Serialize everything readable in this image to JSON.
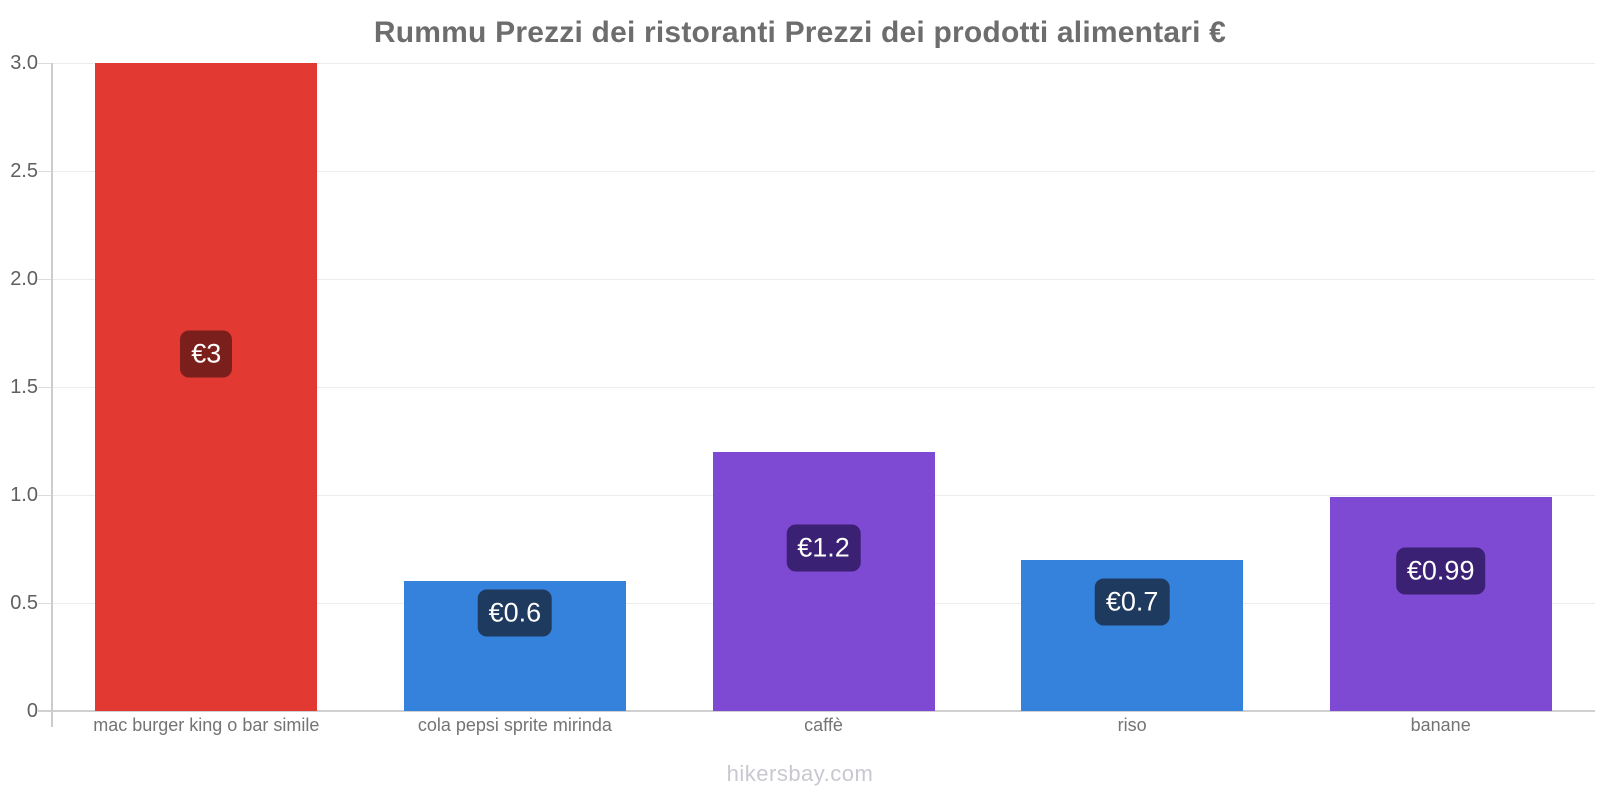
{
  "page": {
    "watermark": "hikersbay.com"
  },
  "chart_data": {
    "type": "bar",
    "title": "Rummu Prezzi dei ristoranti Prezzi dei prodotti alimentari €",
    "categories": [
      "mac burger king o bar simile",
      "cola pepsi sprite mirinda",
      "caffè",
      "riso",
      "banane"
    ],
    "values": [
      3,
      0.6,
      1.2,
      0.7,
      0.99
    ],
    "value_labels": [
      "€3",
      "€0.6",
      "€1.2",
      "€0.7",
      "€0.99"
    ],
    "currency": "€",
    "xlabel": "",
    "ylabel": "",
    "ylim": [
      0,
      3
    ],
    "yticks": [
      0,
      0.5,
      1,
      1.5,
      2,
      2.5,
      3
    ],
    "ytick_labels": [
      "0",
      "0.5",
      "1.0",
      "1.5",
      "2.0",
      "2.5",
      "3.0"
    ],
    "grid": true,
    "legend": false,
    "bar_colors": [
      "#e23933",
      "#3582dd",
      "#7e49d3",
      "#3582dd",
      "#7e49d3"
    ],
    "badge_colors": [
      "#7a1f1b",
      "#1e3a5e",
      "#3b2173",
      "#1e3a5e",
      "#3b2173"
    ],
    "axis_color": "#cccccc",
    "grid_color": "#ececec",
    "baseline_color": "#d0d0d0",
    "title_color": "#6d6d6d",
    "tick_label_color": "#5f5f5f",
    "category_label_color": "#747474",
    "watermark_color": "#c8c8d1"
  }
}
